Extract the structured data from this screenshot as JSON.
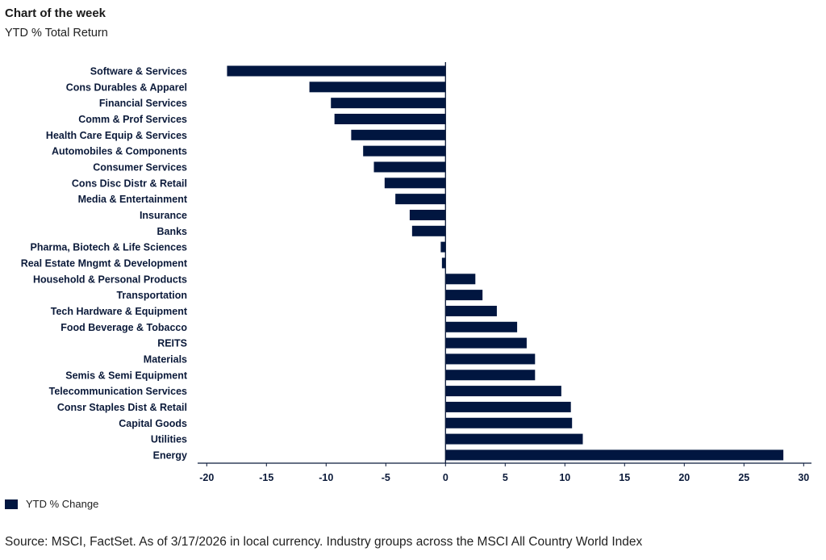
{
  "header": {
    "title": "Chart of the week",
    "subtitle": "YTD % Total Return"
  },
  "footer": {
    "source": "Source: MSCI, FactSet. As of 3/17/2026 in local currency. Industry groups across the MSCI All Country World Index"
  },
  "colors": {
    "bar": "#011640",
    "axis": "#0b1a3a"
  },
  "chart_data": {
    "type": "bar",
    "orientation": "horizontal",
    "title": "Chart of the week",
    "subtitle": "YTD % Total Return",
    "xlim": [
      -21,
      30.5
    ],
    "xticks": [
      -20,
      -15,
      -10,
      -5,
      0,
      5,
      10,
      15,
      20,
      25,
      30
    ],
    "grid": false,
    "legend_position": "bottom-left",
    "categories": [
      "Software & Services",
      "Cons Durables & Apparel",
      "Financial Services",
      "Comm & Prof Services",
      "Health Care Equip & Services",
      "Automobiles & Components",
      "Consumer Services",
      "Cons Disc Distr & Retail",
      "Media & Entertainment",
      "Insurance",
      "Banks",
      "Pharma, Biotech & Life Sciences",
      "Real Estate Mngmt & Development",
      "Household & Personal Products",
      "Transportation",
      "Tech Hardware & Equipment",
      "Food Beverage & Tobacco",
      "REITS",
      "Materials",
      "Semis & Semi Equipment",
      "Telecommunication Services",
      "Consr Staples Dist & Retail",
      "Capital Goods",
      "Utilities",
      "Energy"
    ],
    "series": [
      {
        "name": "YTD % Change",
        "values": [
          -18.3,
          -11.4,
          -9.6,
          -9.3,
          -7.9,
          -6.9,
          -6.0,
          -5.1,
          -4.2,
          -3.0,
          -2.8,
          -0.4,
          -0.3,
          2.5,
          3.1,
          4.3,
          6.0,
          6.8,
          7.5,
          7.5,
          9.7,
          10.5,
          10.6,
          11.5,
          28.3
        ]
      }
    ]
  }
}
